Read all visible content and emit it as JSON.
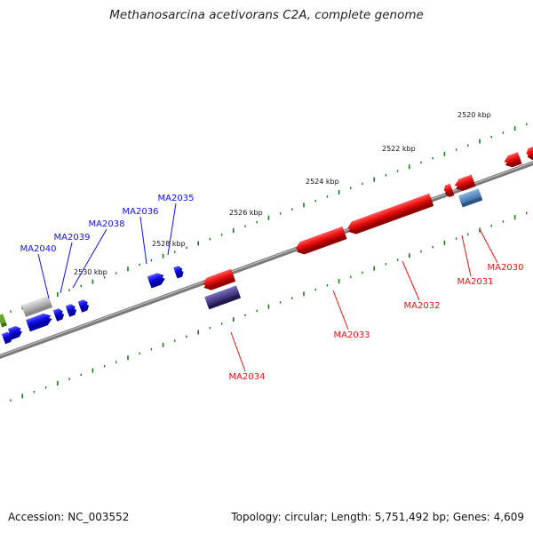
{
  "title": "Methanosarcina acetivorans C2A, complete genome",
  "accession": "Accession: NC_003552",
  "summary": "Topology: circular; Length: 5,751,492 bp; Genes: 4,609",
  "colors": {
    "forward_gene": "#1111ee",
    "reverse_gene": "#ee1111",
    "backbone": "#888888",
    "tick": "#1a7a1a",
    "rna_gene": "#4a7fb8",
    "pseudo_gene": "#4a3d8a",
    "other_gene": "#bdbdbd",
    "green_gene": "#6aa52a"
  },
  "scale_labels": [
    {
      "text": "2520 kbp"
    },
    {
      "text": "2522 kbp"
    },
    {
      "text": "2524 kbp"
    },
    {
      "text": "2526 kbp"
    },
    {
      "text": "2528 kbp"
    },
    {
      "text": "2530 kbp"
    }
  ],
  "gene_labels": [
    {
      "text": "MA2035",
      "strand": "forward"
    },
    {
      "text": "MA2036",
      "strand": "forward"
    },
    {
      "text": "MA2038",
      "strand": "forward"
    },
    {
      "text": "MA2039",
      "strand": "forward"
    },
    {
      "text": "MA2040",
      "strand": "forward"
    },
    {
      "text": "MA2030",
      "strand": "reverse"
    },
    {
      "text": "MA2031",
      "strand": "reverse"
    },
    {
      "text": "MA2032",
      "strand": "reverse"
    },
    {
      "text": "MA2033",
      "strand": "reverse"
    },
    {
      "text": "MA2034",
      "strand": "reverse"
    }
  ]
}
